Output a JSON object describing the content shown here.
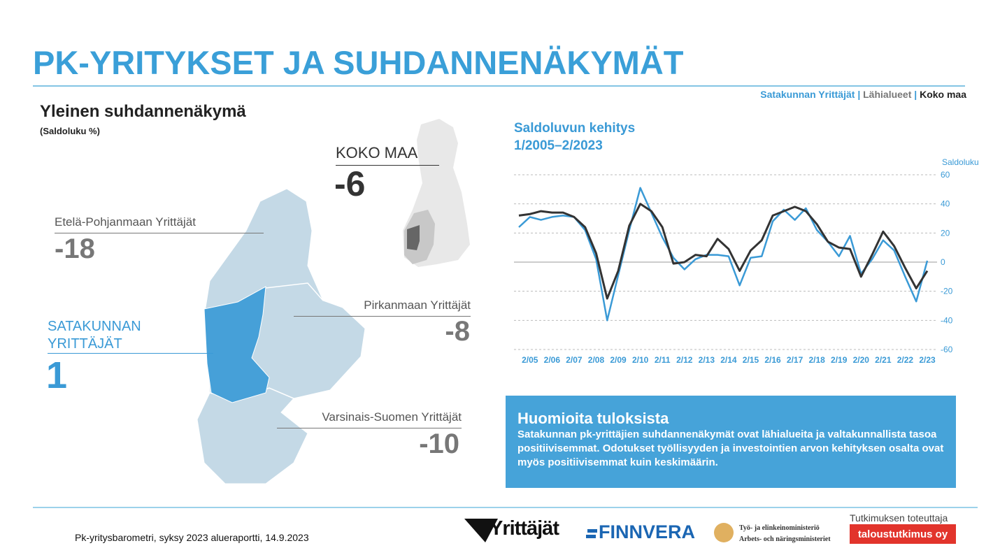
{
  "header": {
    "title": "PK-YRITYKSET JA SUHDANNENÄKYMÄT",
    "separator": "|",
    "neighbors": "Lähialueet"
  },
  "map": {
    "title": "Yleinen suhdannenäkymä",
    "subtitle": "(Saldoluku %)",
    "regions": [
      {
        "name": "KOKO MAA",
        "value": -6
      },
      {
        "name": "Etelä-Pohjanmaan Yrittäjät",
        "value": -18
      },
      {
        "name": "SATAKUNNAN YRITTÄJÄT",
        "value": 1
      },
      {
        "name": "Pirkanmaan Yrittäjät",
        "value": -8
      },
      {
        "name": "Varsinais-Suomen Yrittäjät",
        "value": -10
      }
    ]
  },
  "chart_data": {
    "type": "line",
    "title": "Saldoluvun kehitys",
    "subtitle": "1/2005–2/2023",
    "ylabel": "Saldoluku",
    "categories": [
      null,
      "2/05",
      null,
      "2/06",
      null,
      "2/07",
      null,
      "2/08",
      null,
      "2/09",
      null,
      "2/10",
      null,
      "2/11",
      null,
      "2/12",
      null,
      "2/13",
      null,
      "2/14",
      null,
      "2/15",
      null,
      "2/16",
      null,
      "2/17",
      null,
      "2/18",
      null,
      "2/19",
      null,
      "2/20",
      null,
      "2/21",
      null,
      "2/22",
      null,
      "2/23"
    ],
    "series": [
      {
        "name": "Satakunnan Yrittäjät",
        "color": "#3a9ad6",
        "values": [
          24,
          31,
          29,
          31,
          32,
          31,
          22,
          2,
          -40,
          -9,
          22,
          51,
          34,
          17,
          3,
          -5,
          2,
          5,
          5,
          4,
          -16,
          3,
          4,
          28,
          36,
          29,
          37,
          22,
          14,
          4,
          18,
          -8,
          2,
          15,
          8,
          -10,
          -27,
          1
        ]
      },
      {
        "name": "Koko maa",
        "color": "#333333",
        "values": [
          32,
          33,
          35,
          34,
          34,
          31,
          24,
          6,
          -25,
          -6,
          25,
          40,
          35,
          24,
          -1,
          0,
          5,
          4,
          16,
          9,
          -6,
          8,
          15,
          32,
          35,
          38,
          35,
          26,
          14,
          10,
          9,
          -10,
          5,
          21,
          11,
          -4,
          -18,
          -6
        ]
      }
    ],
    "ylim": [
      -60,
      60
    ],
    "yticks": [
      60,
      40,
      20,
      0,
      -20,
      -40,
      -60
    ],
    "grid": true
  },
  "notes": {
    "title": "Huomioita tuloksista",
    "text": "Satakunnan pk-yrittäjien suhdannenäkymät ovat lähialueita ja valtakunnallista tasoa positiivisemmat. Odotukset työllisyyden ja investointien arvon kehityksen osalta ovat myös positiivisemmat kuin keskimäärin."
  },
  "footer": {
    "source": "Pk-yritysbarometri, syksy 2023 alueraportti, 14.9.2023",
    "logo_1": "Yrittäjät",
    "logo_2": "FINNVERA",
    "logo_3_fi": "Työ- ja elinkeinoministeriö",
    "logo_3_sv": "Arbets- och näringsministeriet",
    "research_label": "Tutkimuksen toteuttaja",
    "research_company": "taloustutkimus oy"
  }
}
